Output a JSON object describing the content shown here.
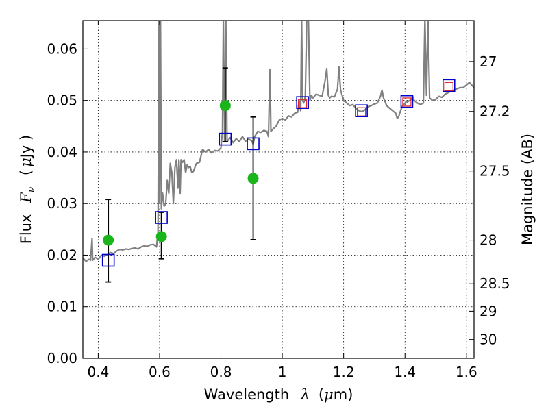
{
  "chart_data": {
    "type": "scatter",
    "title": "",
    "xlabel": {
      "prefix": "Wavelength",
      "symbol": "λ",
      "unit_open": "(",
      "unit_mu": "μ",
      "unit_rest": "m)"
    },
    "ylabel": {
      "prefix": "Flux",
      "symbol": "F",
      "subscript": "ν",
      "unit_open": "(",
      "unit_mu": "μ",
      "unit_rest": "Jy )"
    },
    "y2label": "Magnitude (AB)",
    "xlim": [
      0.35,
      1.625
    ],
    "ylim": [
      0.0,
      0.0655
    ],
    "grid": true,
    "x_ticks": [
      {
        "value": 0.4,
        "label": "0.4"
      },
      {
        "value": 0.6,
        "label": "0.6"
      },
      {
        "value": 0.8,
        "label": "0.8"
      },
      {
        "value": 1.0,
        "label": "1"
      },
      {
        "value": 1.2,
        "label": "1.2"
      },
      {
        "value": 1.4,
        "label": "1.4"
      },
      {
        "value": 1.6,
        "label": "1.6"
      }
    ],
    "y_ticks": [
      {
        "value": 0.0,
        "label": "0.00"
      },
      {
        "value": 0.01,
        "label": "0.01"
      },
      {
        "value": 0.02,
        "label": "0.02"
      },
      {
        "value": 0.03,
        "label": "0.03"
      },
      {
        "value": 0.04,
        "label": "0.04"
      },
      {
        "value": 0.05,
        "label": "0.05"
      },
      {
        "value": 0.06,
        "label": "0.06"
      }
    ],
    "y2_ticks": [
      {
        "value": 27.0,
        "label": "27"
      },
      {
        "value": 27.2,
        "label": "27.2"
      },
      {
        "value": 27.5,
        "label": "27.5"
      },
      {
        "value": 28.0,
        "label": "28"
      },
      {
        "value": 28.5,
        "label": "28.5"
      },
      {
        "value": 29.0,
        "label": "29"
      },
      {
        "value": 30.0,
        "label": "30"
      }
    ],
    "series": [
      {
        "kind": "line",
        "color": "#808080",
        "points": [
          [
            0.35,
            0.0195
          ],
          [
            0.36,
            0.0188
          ],
          [
            0.37,
            0.0192
          ],
          [
            0.375,
            0.019
          ],
          [
            0.38,
            0.0232
          ],
          [
            0.382,
            0.019
          ],
          [
            0.39,
            0.0196
          ],
          [
            0.4,
            0.0192
          ],
          [
            0.41,
            0.02
          ],
          [
            0.42,
            0.0198
          ],
          [
            0.43,
            0.0201
          ],
          [
            0.44,
            0.0205
          ],
          [
            0.45,
            0.0203
          ],
          [
            0.46,
            0.0208
          ],
          [
            0.47,
            0.0211
          ],
          [
            0.48,
            0.021
          ],
          [
            0.49,
            0.0212
          ],
          [
            0.5,
            0.0211
          ],
          [
            0.51,
            0.0213
          ],
          [
            0.52,
            0.0214
          ],
          [
            0.53,
            0.0212
          ],
          [
            0.54,
            0.0216
          ],
          [
            0.55,
            0.0218
          ],
          [
            0.56,
            0.0217
          ],
          [
            0.57,
            0.022
          ],
          [
            0.58,
            0.0221
          ],
          [
            0.59,
            0.0216
          ],
          [
            0.595,
            0.0245
          ],
          [
            0.598,
            0.066
          ],
          [
            0.6,
            0.03
          ],
          [
            0.603,
            0.066
          ],
          [
            0.606,
            0.029
          ],
          [
            0.61,
            0.032
          ],
          [
            0.615,
            0.0295
          ],
          [
            0.62,
            0.03
          ],
          [
            0.625,
            0.0345
          ],
          [
            0.63,
            0.032
          ],
          [
            0.635,
            0.0378
          ],
          [
            0.64,
            0.036
          ],
          [
            0.645,
            0.03
          ],
          [
            0.65,
            0.037
          ],
          [
            0.655,
            0.0385
          ],
          [
            0.66,
            0.033
          ],
          [
            0.663,
            0.0385
          ],
          [
            0.667,
            0.032
          ],
          [
            0.67,
            0.0385
          ],
          [
            0.675,
            0.038
          ],
          [
            0.68,
            0.0385
          ],
          [
            0.685,
            0.036
          ],
          [
            0.69,
            0.0375
          ],
          [
            0.695,
            0.037
          ],
          [
            0.7,
            0.0372
          ],
          [
            0.705,
            0.036
          ],
          [
            0.71,
            0.0362
          ],
          [
            0.72,
            0.0378
          ],
          [
            0.73,
            0.038
          ],
          [
            0.74,
            0.0405
          ],
          [
            0.75,
            0.04
          ],
          [
            0.76,
            0.0405
          ],
          [
            0.77,
            0.0398
          ],
          [
            0.78,
            0.0403
          ],
          [
            0.79,
            0.0402
          ],
          [
            0.8,
            0.0408
          ],
          [
            0.805,
            0.044
          ],
          [
            0.808,
            0.066
          ],
          [
            0.812,
            0.042
          ],
          [
            0.816,
            0.066
          ],
          [
            0.82,
            0.042
          ],
          [
            0.83,
            0.0428
          ],
          [
            0.84,
            0.0418
          ],
          [
            0.85,
            0.0426
          ],
          [
            0.86,
            0.042
          ],
          [
            0.87,
            0.043
          ],
          [
            0.88,
            0.0421
          ],
          [
            0.89,
            0.0425
          ],
          [
            0.9,
            0.0422
          ],
          [
            0.905,
            0.0415
          ],
          [
            0.91,
            0.043
          ],
          [
            0.92,
            0.044
          ],
          [
            0.93,
            0.0438
          ],
          [
            0.94,
            0.0442
          ],
          [
            0.95,
            0.044
          ],
          [
            0.955,
            0.043
          ],
          [
            0.96,
            0.056
          ],
          [
            0.963,
            0.044
          ],
          [
            0.97,
            0.0445
          ],
          [
            0.98,
            0.045
          ],
          [
            0.99,
            0.0462
          ],
          [
            1.0,
            0.0465
          ],
          [
            1.01,
            0.0462
          ],
          [
            1.02,
            0.047
          ],
          [
            1.03,
            0.0468
          ],
          [
            1.04,
            0.0475
          ],
          [
            1.05,
            0.0477
          ],
          [
            1.055,
            0.05
          ],
          [
            1.06,
            0.048
          ],
          [
            1.063,
            0.066
          ],
          [
            1.066,
            0.05
          ],
          [
            1.07,
            0.0495
          ],
          [
            1.075,
            0.0508
          ],
          [
            1.08,
            0.066
          ],
          [
            1.085,
            0.066
          ],
          [
            1.09,
            0.05
          ],
          [
            1.095,
            0.051
          ],
          [
            1.1,
            0.0505
          ],
          [
            1.11,
            0.0512
          ],
          [
            1.12,
            0.051
          ],
          [
            1.13,
            0.0508
          ],
          [
            1.14,
            0.054
          ],
          [
            1.145,
            0.0562
          ],
          [
            1.15,
            0.051
          ],
          [
            1.155,
            0.0505
          ],
          [
            1.16,
            0.0508
          ],
          [
            1.17,
            0.0507
          ],
          [
            1.18,
            0.0522
          ],
          [
            1.185,
            0.0565
          ],
          [
            1.19,
            0.052
          ],
          [
            1.2,
            0.05
          ],
          [
            1.21,
            0.0495
          ],
          [
            1.22,
            0.049
          ],
          [
            1.23,
            0.0492
          ],
          [
            1.24,
            0.0485
          ],
          [
            1.25,
            0.048
          ],
          [
            1.26,
            0.0478
          ],
          [
            1.27,
            0.0482
          ],
          [
            1.28,
            0.0488
          ],
          [
            1.29,
            0.049
          ],
          [
            1.3,
            0.0493
          ],
          [
            1.31,
            0.0495
          ],
          [
            1.32,
            0.0508
          ],
          [
            1.325,
            0.052
          ],
          [
            1.33,
            0.0505
          ],
          [
            1.34,
            0.049
          ],
          [
            1.35,
            0.0485
          ],
          [
            1.36,
            0.048
          ],
          [
            1.37,
            0.0475
          ],
          [
            1.375,
            0.0465
          ],
          [
            1.38,
            0.047
          ],
          [
            1.39,
            0.0488
          ],
          [
            1.4,
            0.0495
          ],
          [
            1.41,
            0.0498
          ],
          [
            1.42,
            0.0502
          ],
          [
            1.425,
            0.0508
          ],
          [
            1.43,
            0.05
          ],
          [
            1.44,
            0.0495
          ],
          [
            1.45,
            0.0492
          ],
          [
            1.46,
            0.0495
          ],
          [
            1.465,
            0.066
          ],
          [
            1.47,
            0.051
          ],
          [
            1.475,
            0.066
          ],
          [
            1.48,
            0.0505
          ],
          [
            1.49,
            0.05
          ],
          [
            1.5,
            0.0502
          ],
          [
            1.51,
            0.0508
          ],
          [
            1.52,
            0.0506
          ],
          [
            1.53,
            0.0512
          ],
          [
            1.54,
            0.0515
          ],
          [
            1.55,
            0.0518
          ],
          [
            1.56,
            0.052
          ],
          [
            1.57,
            0.0523
          ],
          [
            1.58,
            0.0525
          ],
          [
            1.59,
            0.0525
          ],
          [
            1.6,
            0.053
          ],
          [
            1.61,
            0.0535
          ],
          [
            1.625,
            0.0525
          ]
        ]
      },
      {
        "kind": "errorbar",
        "color": "#000000",
        "points": [
          {
            "x": 0.433,
            "low": 0.0148,
            "high": 0.0308
          },
          {
            "x": 0.606,
            "low": 0.0193,
            "high": 0.0283
          },
          {
            "x": 0.814,
            "low": 0.042,
            "high": 0.0563
          },
          {
            "x": 0.905,
            "low": 0.023,
            "high": 0.0468
          }
        ]
      },
      {
        "kind": "marker-circle",
        "color": "#1ab51a",
        "points": [
          [
            0.433,
            0.0229
          ],
          [
            0.606,
            0.0236
          ],
          [
            0.814,
            0.049
          ],
          [
            0.905,
            0.0349
          ]
        ]
      },
      {
        "kind": "marker-square-open",
        "color": "#0000cc",
        "points": [
          [
            0.433,
            0.019
          ],
          [
            0.606,
            0.0273
          ],
          [
            0.814,
            0.0425
          ],
          [
            0.905,
            0.0416
          ],
          [
            1.066,
            0.0496
          ],
          [
            1.258,
            0.048
          ],
          [
            1.406,
            0.0498
          ],
          [
            1.543,
            0.0529
          ]
        ]
      },
      {
        "kind": "marker-square-open-small",
        "color": "#dd2222",
        "points": [
          [
            1.066,
            0.0494
          ],
          [
            1.258,
            0.0478
          ],
          [
            1.406,
            0.0497
          ],
          [
            1.543,
            0.0527
          ]
        ]
      }
    ]
  }
}
